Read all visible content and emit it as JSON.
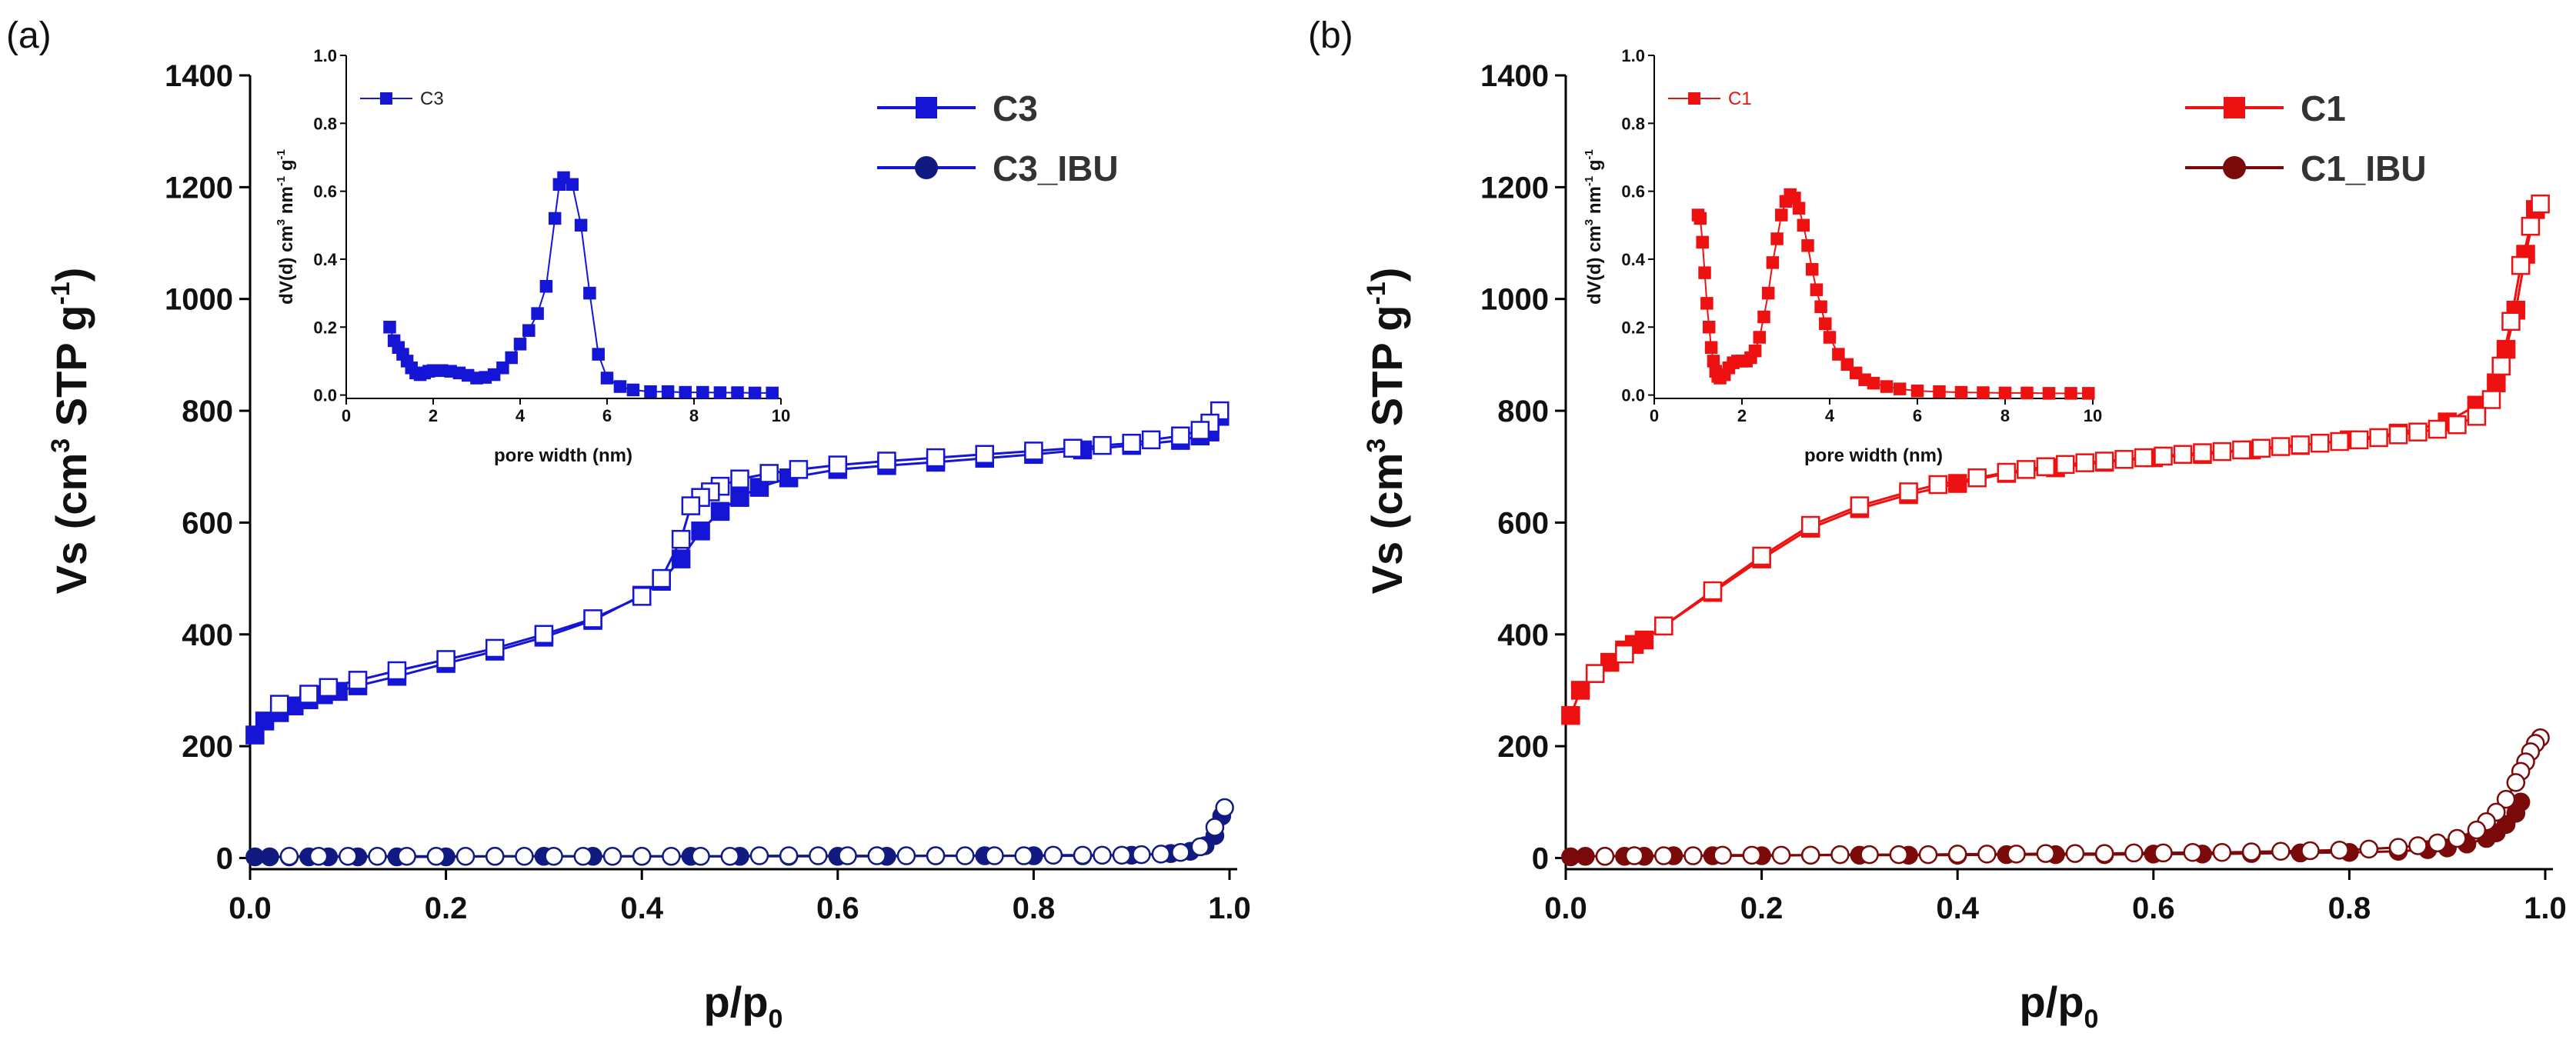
{
  "figure": {
    "panels": [
      {
        "panel_label": "(a)",
        "main": {
          "xlabel": "p/p",
          "xlabel_sub": "0",
          "ylabel_pre": "Vs (cm",
          "ylabel_sup1": "3",
          "ylabel_mid": " STP g",
          "ylabel_sup2": "-1",
          "ylabel_post": ")",
          "xticks": [
            "0.0",
            "0.2",
            "0.4",
            "0.6",
            "0.8",
            "1.0"
          ],
          "yticks": [
            "0",
            "200",
            "400",
            "600",
            "800",
            "1000",
            "1200",
            "1400"
          ]
        },
        "legend": [
          "C3",
          "C3_IBU"
        ],
        "inset": {
          "legend": "C3",
          "xlabel": "pore width (nm)",
          "ylabel_pre": "dV(d) cm",
          "ylabel_sup1": "3",
          "ylabel_mid": " nm",
          "ylabel_sup2": "-1",
          "ylabel_mid2": " g",
          "ylabel_sup3": "-1",
          "xticks": [
            "0",
            "2",
            "4",
            "6",
            "8",
            "10"
          ],
          "yticks": [
            "0.0",
            "0.2",
            "0.4",
            "0.6",
            "0.8",
            "1.0"
          ]
        }
      },
      {
        "panel_label": "(b)",
        "main": {
          "xlabel": "p/p",
          "xlabel_sub": "0",
          "ylabel_pre": "Vs (cm",
          "ylabel_sup1": "3",
          "ylabel_mid": " STP g",
          "ylabel_sup2": "-1",
          "ylabel_post": ")",
          "xticks": [
            "0.0",
            "0.2",
            "0.4",
            "0.6",
            "0.8",
            "1.0"
          ],
          "yticks": [
            "0",
            "200",
            "400",
            "600",
            "800",
            "1000",
            "1200",
            "1400"
          ]
        },
        "legend": [
          "C1",
          "C1_IBU"
        ],
        "inset": {
          "legend": "C1",
          "xlabel": "pore width (nm)",
          "ylabel_pre": "dV(d) cm",
          "ylabel_sup1": "3",
          "ylabel_mid": " nm",
          "ylabel_sup2": "-1",
          "ylabel_mid2": " g",
          "ylabel_sup3": "-1",
          "xticks": [
            "0",
            "2",
            "4",
            "6",
            "8",
            "10"
          ],
          "yticks": [
            "0.0",
            "0.2",
            "0.4",
            "0.6",
            "0.8",
            "1.0"
          ]
        }
      }
    ]
  },
  "chart_data": [
    {
      "id": "a-main",
      "type": "line",
      "xlabel": "p/p0",
      "ylabel": "Vs (cm3 STP g-1)",
      "xlim": [
        0,
        1.0
      ],
      "ylim": [
        -20,
        1400
      ],
      "series": [
        {
          "name": "C3",
          "branch": "adsorption",
          "marker": "square-filled",
          "color": "#1515d6",
          "x": [
            0.005,
            0.015,
            0.03,
            0.045,
            0.06,
            0.075,
            0.09,
            0.11,
            0.15,
            0.2,
            0.25,
            0.3,
            0.35,
            0.4,
            0.42,
            0.44,
            0.46,
            0.48,
            0.5,
            0.52,
            0.55,
            0.6,
            0.65,
            0.7,
            0.75,
            0.8,
            0.85,
            0.9,
            0.95,
            0.97,
            0.98,
            0.99
          ],
          "y": [
            220,
            245,
            260,
            272,
            283,
            292,
            298,
            308,
            325,
            348,
            370,
            395,
            425,
            470,
            495,
            535,
            585,
            620,
            645,
            663,
            680,
            695,
            702,
            708,
            715,
            722,
            730,
            738,
            747,
            755,
            762,
            790
          ]
        },
        {
          "name": "C3",
          "branch": "desorption",
          "marker": "square-open",
          "color": "#1515d6",
          "x": [
            0.99,
            0.98,
            0.97,
            0.95,
            0.92,
            0.9,
            0.87,
            0.84,
            0.8,
            0.75,
            0.7,
            0.65,
            0.6,
            0.56,
            0.53,
            0.5,
            0.48,
            0.47,
            0.46,
            0.45,
            0.44,
            0.42,
            0.4,
            0.35,
            0.3,
            0.25,
            0.2,
            0.15,
            0.11,
            0.08,
            0.06,
            0.03
          ],
          "y": [
            800,
            778,
            765,
            755,
            748,
            742,
            738,
            733,
            728,
            722,
            716,
            710,
            703,
            695,
            688,
            678,
            665,
            655,
            645,
            630,
            570,
            500,
            468,
            428,
            400,
            375,
            355,
            335,
            318,
            305,
            293,
            275
          ]
        },
        {
          "name": "C3_IBU",
          "branch": "adsorption",
          "marker": "circle-filled",
          "color": "#111a80",
          "x": [
            0.005,
            0.02,
            0.04,
            0.06,
            0.08,
            0.11,
            0.15,
            0.2,
            0.25,
            0.3,
            0.35,
            0.4,
            0.45,
            0.5,
            0.55,
            0.6,
            0.65,
            0.7,
            0.75,
            0.8,
            0.85,
            0.9,
            0.94,
            0.96,
            0.975,
            0.985,
            0.992
          ],
          "y": [
            2,
            2,
            2,
            2,
            2,
            2,
            2,
            2,
            3,
            3,
            3,
            3,
            3,
            3,
            3,
            3,
            3,
            4,
            4,
            4,
            4,
            5,
            8,
            12,
            22,
            40,
            75
          ]
        },
        {
          "name": "C3_IBU",
          "branch": "desorption",
          "marker": "circle-open",
          "color": "#111a80",
          "x": [
            0.995,
            0.985,
            0.97,
            0.95,
            0.93,
            0.91,
            0.89,
            0.87,
            0.85,
            0.82,
            0.79,
            0.76,
            0.73,
            0.7,
            0.67,
            0.64,
            0.61,
            0.58,
            0.55,
            0.52,
            0.49,
            0.46,
            0.43,
            0.4,
            0.37,
            0.34,
            0.31,
            0.28,
            0.25,
            0.22,
            0.19,
            0.16,
            0.13,
            0.1,
            0.07,
            0.04
          ],
          "y": [
            90,
            55,
            20,
            10,
            7,
            6,
            5,
            5,
            5,
            5,
            4,
            4,
            4,
            4,
            4,
            4,
            4,
            4,
            4,
            4,
            3,
            3,
            3,
            3,
            3,
            3,
            3,
            3,
            3,
            3,
            3,
            3,
            3,
            3,
            3,
            3
          ]
        }
      ]
    },
    {
      "id": "a-inset",
      "type": "line",
      "xlabel": "pore width (nm)",
      "ylabel": "dV(d) cm3 nm-1 g-1",
      "xlim": [
        0,
        10
      ],
      "ylim": [
        -0.01,
        1.0
      ],
      "series": [
        {
          "name": "C3",
          "marker": "square-filled",
          "color": "#1515d6",
          "x": [
            1.0,
            1.1,
            1.2,
            1.3,
            1.4,
            1.5,
            1.6,
            1.7,
            1.8,
            1.9,
            2.0,
            2.2,
            2.4,
            2.6,
            2.8,
            3.0,
            3.2,
            3.4,
            3.6,
            3.8,
            4.0,
            4.2,
            4.4,
            4.6,
            4.8,
            4.9,
            5.0,
            5.2,
            5.4,
            5.6,
            5.8,
            6.0,
            6.3,
            6.6,
            7.0,
            7.4,
            7.8,
            8.2,
            8.6,
            9.0,
            9.4,
            9.8
          ],
          "y": [
            0.2,
            0.16,
            0.14,
            0.12,
            0.1,
            0.08,
            0.065,
            0.06,
            0.065,
            0.07,
            0.072,
            0.072,
            0.07,
            0.065,
            0.058,
            0.05,
            0.052,
            0.06,
            0.08,
            0.11,
            0.15,
            0.19,
            0.24,
            0.32,
            0.52,
            0.62,
            0.64,
            0.62,
            0.5,
            0.3,
            0.12,
            0.05,
            0.025,
            0.015,
            0.01,
            0.01,
            0.008,
            0.008,
            0.007,
            0.007,
            0.006,
            0.006
          ]
        }
      ]
    },
    {
      "id": "b-main",
      "type": "line",
      "xlabel": "p/p0",
      "ylabel": "Vs (cm3 STP g-1)",
      "xlim": [
        0,
        1.0
      ],
      "ylim": [
        -20,
        1400
      ],
      "series": [
        {
          "name": "C1",
          "branch": "adsorption",
          "marker": "square-filled",
          "color": "#ee1111",
          "x": [
            0.005,
            0.015,
            0.03,
            0.045,
            0.06,
            0.07,
            0.08,
            0.1,
            0.15,
            0.2,
            0.25,
            0.3,
            0.35,
            0.4,
            0.45,
            0.5,
            0.55,
            0.6,
            0.65,
            0.7,
            0.75,
            0.8,
            0.85,
            0.9,
            0.93,
            0.95,
            0.96,
            0.97,
            0.98,
            0.99
          ],
          "y": [
            255,
            300,
            330,
            350,
            372,
            382,
            390,
            415,
            475,
            535,
            590,
            625,
            650,
            670,
            688,
            698,
            708,
            716,
            722,
            730,
            738,
            748,
            760,
            780,
            810,
            850,
            910,
            980,
            1080,
            1160
          ]
        },
        {
          "name": "C1",
          "branch": "desorption",
          "marker": "square-open",
          "color": "#ee1111",
          "x": [
            0.995,
            0.985,
            0.975,
            0.965,
            0.955,
            0.945,
            0.93,
            0.91,
            0.89,
            0.87,
            0.85,
            0.83,
            0.81,
            0.79,
            0.77,
            0.75,
            0.73,
            0.71,
            0.69,
            0.67,
            0.65,
            0.63,
            0.61,
            0.59,
            0.57,
            0.55,
            0.53,
            0.51,
            0.49,
            0.47,
            0.45,
            0.42,
            0.38,
            0.35,
            0.3,
            0.25,
            0.2,
            0.15,
            0.1,
            0.06,
            0.03
          ],
          "y": [
            1170,
            1130,
            1060,
            960,
            880,
            820,
            790,
            775,
            767,
            762,
            757,
            752,
            748,
            745,
            742,
            739,
            736,
            733,
            730,
            727,
            725,
            722,
            719,
            716,
            713,
            710,
            707,
            704,
            700,
            695,
            690,
            680,
            668,
            655,
            630,
            595,
            540,
            478,
            415,
            365,
            330
          ]
        },
        {
          "name": "C1_IBU",
          "branch": "adsorption",
          "marker": "circle-filled",
          "color": "#7a0a0a",
          "x": [
            0.005,
            0.02,
            0.04,
            0.06,
            0.08,
            0.11,
            0.15,
            0.2,
            0.25,
            0.3,
            0.35,
            0.4,
            0.45,
            0.5,
            0.55,
            0.6,
            0.65,
            0.7,
            0.75,
            0.8,
            0.85,
            0.88,
            0.9,
            0.92,
            0.94,
            0.95,
            0.96,
            0.97,
            0.975
          ],
          "y": [
            2,
            3,
            3,
            3,
            3,
            4,
            4,
            4,
            5,
            5,
            5,
            5,
            6,
            6,
            6,
            7,
            7,
            8,
            9,
            10,
            12,
            15,
            18,
            25,
            35,
            45,
            60,
            80,
            100
          ]
        },
        {
          "name": "C1_IBU",
          "branch": "desorption",
          "marker": "circle-open",
          "color": "#7a0a0a",
          "x": [
            0.995,
            0.99,
            0.985,
            0.98,
            0.975,
            0.97,
            0.96,
            0.95,
            0.94,
            0.93,
            0.91,
            0.89,
            0.87,
            0.85,
            0.82,
            0.79,
            0.76,
            0.73,
            0.7,
            0.67,
            0.64,
            0.61,
            0.58,
            0.55,
            0.52,
            0.49,
            0.46,
            0.43,
            0.4,
            0.37,
            0.34,
            0.31,
            0.28,
            0.25,
            0.22,
            0.19,
            0.16,
            0.13,
            0.1,
            0.07,
            0.04
          ],
          "y": [
            215,
            205,
            190,
            172,
            155,
            135,
            105,
            82,
            65,
            50,
            35,
            27,
            22,
            19,
            16,
            14,
            13,
            12,
            11,
            10,
            10,
            9,
            9,
            8,
            8,
            8,
            7,
            7,
            7,
            6,
            6,
            6,
            6,
            5,
            5,
            5,
            5,
            4,
            4,
            4,
            3
          ]
        }
      ]
    },
    {
      "id": "b-inset",
      "type": "line",
      "xlabel": "pore width (nm)",
      "ylabel": "dV(d) cm3 nm-1 g-1",
      "xlim": [
        0,
        10
      ],
      "ylim": [
        -0.01,
        1.0
      ],
      "series": [
        {
          "name": "C1",
          "marker": "square-filled",
          "color": "#ee1111",
          "x": [
            1.0,
            1.05,
            1.1,
            1.15,
            1.2,
            1.25,
            1.3,
            1.35,
            1.4,
            1.45,
            1.5,
            1.6,
            1.7,
            1.8,
            1.9,
            2.0,
            2.1,
            2.2,
            2.3,
            2.4,
            2.5,
            2.6,
            2.7,
            2.8,
            2.9,
            3.0,
            3.1,
            3.2,
            3.3,
            3.4,
            3.5,
            3.6,
            3.7,
            3.8,
            3.9,
            4.0,
            4.2,
            4.4,
            4.6,
            4.8,
            5.0,
            5.3,
            5.6,
            6.0,
            6.5,
            7.0,
            7.5,
            8.0,
            8.5,
            9.0,
            9.5,
            9.9
          ],
          "y": [
            0.53,
            0.52,
            0.45,
            0.36,
            0.27,
            0.2,
            0.14,
            0.1,
            0.07,
            0.055,
            0.05,
            0.06,
            0.08,
            0.095,
            0.1,
            0.1,
            0.1,
            0.11,
            0.13,
            0.17,
            0.23,
            0.3,
            0.39,
            0.46,
            0.53,
            0.57,
            0.59,
            0.58,
            0.55,
            0.5,
            0.44,
            0.37,
            0.31,
            0.26,
            0.21,
            0.17,
            0.12,
            0.09,
            0.065,
            0.045,
            0.035,
            0.025,
            0.018,
            0.012,
            0.01,
            0.008,
            0.007,
            0.006,
            0.006,
            0.005,
            0.005,
            0.005
          ]
        }
      ]
    }
  ]
}
